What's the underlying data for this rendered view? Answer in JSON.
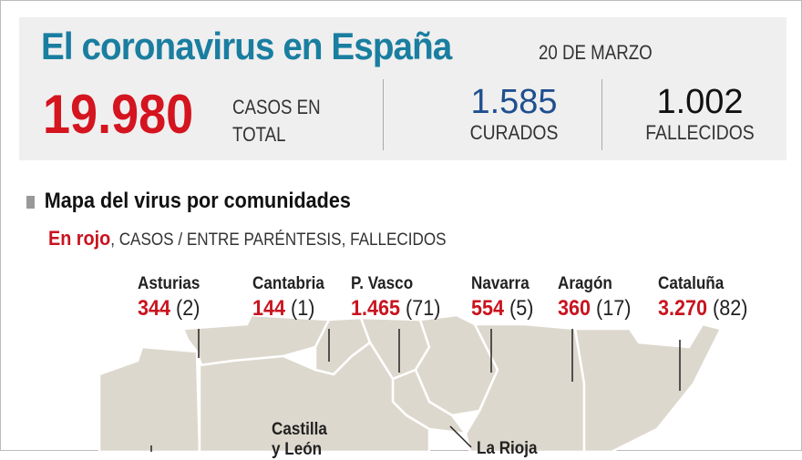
{
  "header": {
    "title": "El coronavirus en España",
    "date": "20 DE MARZO",
    "total_cases": "19.980",
    "total_label_1": "CASOS EN",
    "total_label_2": "TOTAL",
    "recovered": "1.585",
    "recovered_label": "CURADOS",
    "deaths": "1.002",
    "deaths_label": "FALLECIDOS"
  },
  "map_section": {
    "title": "Mapa del virus por comunidades",
    "legend_red": "En rojo",
    "legend_rest": ", CASOS / ENTRE PARÉNTESIS, FALLECIDOS"
  },
  "regions": [
    {
      "name": "Asturias",
      "cases": "344",
      "deaths": "(2)"
    },
    {
      "name": "Cantabria",
      "cases": "144",
      "deaths": "(1)"
    },
    {
      "name": "P. Vasco",
      "cases": "1.465",
      "deaths": "(71)"
    },
    {
      "name": "Navarra",
      "cases": "554",
      "deaths": "(5)"
    },
    {
      "name": "Aragón",
      "cases": "360",
      "deaths": "(17)"
    },
    {
      "name": "Cataluña",
      "cases": "3.270",
      "deaths": "(82)"
    }
  ],
  "map_labels": {
    "castilla_1": "Castilla",
    "castilla_2": "y León",
    "rioja": "La Rioja"
  },
  "colors": {
    "title": "#1a7ea0",
    "cases": "#c8141f",
    "recovered": "#1f4f8f",
    "land": "#ddd8cd"
  }
}
